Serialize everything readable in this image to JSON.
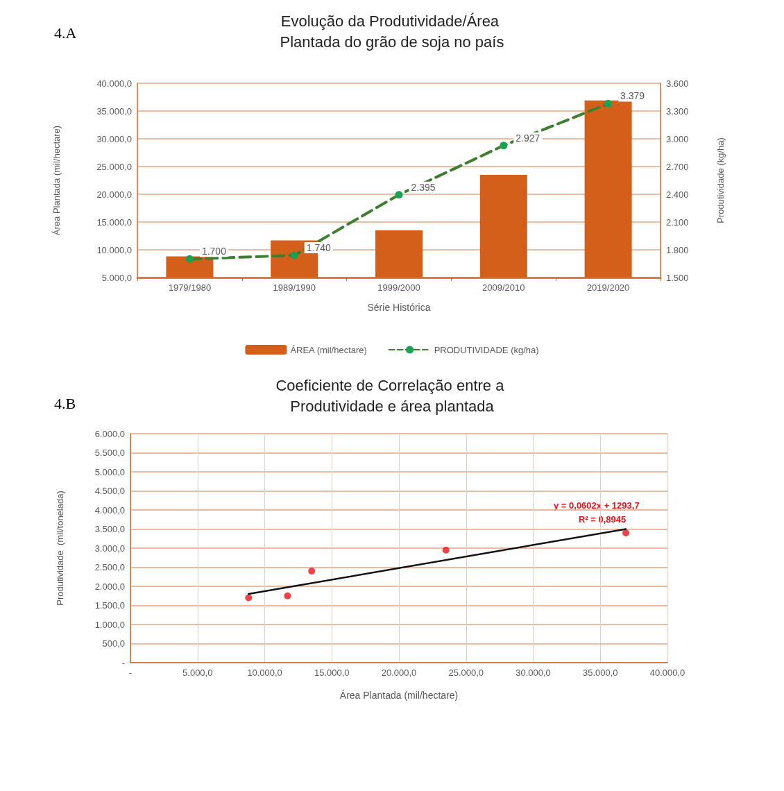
{
  "chart_data": [
    {
      "type": "bar",
      "title": "Evolução da Produtividade/Área Plantada do grão de soja no país",
      "xlabel": "Série Histórica",
      "ylabel": "Área Plantada (mil/hectare)",
      "y2label": "Produtividade (kg/ha)",
      "annotations": [
        "4.A"
      ],
      "categories": [
        "1979/1980",
        "1989/1990",
        "1999/2000",
        "2009/2010",
        "2019/2020"
      ],
      "series": [
        {
          "name": "ÁREA (mil/hectare)",
          "color": "#d35f1a",
          "values": [
            8800,
            11700,
            13500,
            23500,
            36900
          ]
        },
        {
          "type": "line",
          "name": "PRODUTIVIDADE (kg/ha)",
          "color": "#3d7f2e",
          "axis": "y2",
          "marker": "circle",
          "line_style": "dashed",
          "values": [
            1700,
            1740,
            2395,
            2927,
            3379
          ],
          "value_labels": [
            "1.700",
            "1.740",
            "2.395",
            "2.927",
            "3.379"
          ]
        }
      ],
      "ylim": [
        5000,
        40000
      ],
      "yticks": [
        {
          "value": 5000,
          "label": "5.000,0"
        },
        {
          "value": 10000,
          "label": "10.000,0"
        },
        {
          "value": 15000,
          "label": "15.000,0"
        },
        {
          "value": 20000,
          "label": "20.000,0"
        },
        {
          "value": 25000,
          "label": "25.000,0"
        },
        {
          "value": 30000,
          "label": "30.000,0"
        },
        {
          "value": 35000,
          "label": "35.000,0"
        },
        {
          "value": 40000,
          "label": "40.000,0"
        }
      ],
      "y2lim": [
        1500,
        3600
      ],
      "y2ticks": [
        {
          "value": 1500,
          "label": "1.500"
        },
        {
          "value": 1800,
          "label": "1.800"
        },
        {
          "value": 2100,
          "label": "2.100"
        },
        {
          "value": 2400,
          "label": "2.400"
        },
        {
          "value": 2700,
          "label": "2.700"
        },
        {
          "value": 3000,
          "label": "3.000"
        },
        {
          "value": 3300,
          "label": "3.300"
        },
        {
          "value": 3600,
          "label": "3.600"
        }
      ],
      "grid": "y",
      "legend": "bottom"
    },
    {
      "type": "scatter",
      "title": "Coeficiente de Correlação entre a Produtividade e área plantada",
      "xlabel": "Área Plantada (mil/hectare)",
      "ylabel": "Produtividade  (mil/tonelada)",
      "annotations": [
        "4.B",
        "y = 0,0602x + 1293,7",
        "R² = 0,8945"
      ],
      "series": [
        {
          "color": "#e8141c",
          "marker": "circle",
          "x": [
            8800,
            11700,
            13500,
            23500,
            36900
          ],
          "values": [
            1700,
            1750,
            2400,
            2950,
            3400
          ]
        },
        {
          "type": "line",
          "color": "#111111",
          "marker": "none",
          "line_style": "solid",
          "x": [
            8800,
            36900
          ],
          "values": [
            1800,
            3500
          ]
        }
      ],
      "xlim": [
        0,
        40000
      ],
      "xticks": [
        {
          "value": 0,
          "label": "-"
        },
        {
          "value": 5000,
          "label": "5.000,0"
        },
        {
          "value": 10000,
          "label": "10.000,0"
        },
        {
          "value": 15000,
          "label": "15.000,0"
        },
        {
          "value": 20000,
          "label": "20.000,0"
        },
        {
          "value": 25000,
          "label": "25.000,0"
        },
        {
          "value": 30000,
          "label": "30.000,0"
        },
        {
          "value": 35000,
          "label": "35.000,0"
        },
        {
          "value": 40000,
          "label": "40.000,0"
        }
      ],
      "ylim": [
        0,
        6000
      ],
      "yticks": [
        {
          "value": 0,
          "label": "-"
        },
        {
          "value": 500,
          "label": "500,0"
        },
        {
          "value": 1000,
          "label": "1.000,0"
        },
        {
          "value": 1500,
          "label": "1.500,0"
        },
        {
          "value": 2000,
          "label": "2.000,0"
        },
        {
          "value": 2500,
          "label": "2.500,0"
        },
        {
          "value": 3000,
          "label": "3.000,0"
        },
        {
          "value": 3500,
          "label": "3.500,0"
        },
        {
          "value": 4000,
          "label": "4.000,0"
        },
        {
          "value": 4500,
          "label": "4.500,0"
        },
        {
          "value": 5000,
          "label": "5.000,0"
        },
        {
          "value": 5500,
          "label": "5.500,0"
        },
        {
          "value": 6000,
          "label": "6.000,0"
        }
      ],
      "grid": true
    }
  ]
}
